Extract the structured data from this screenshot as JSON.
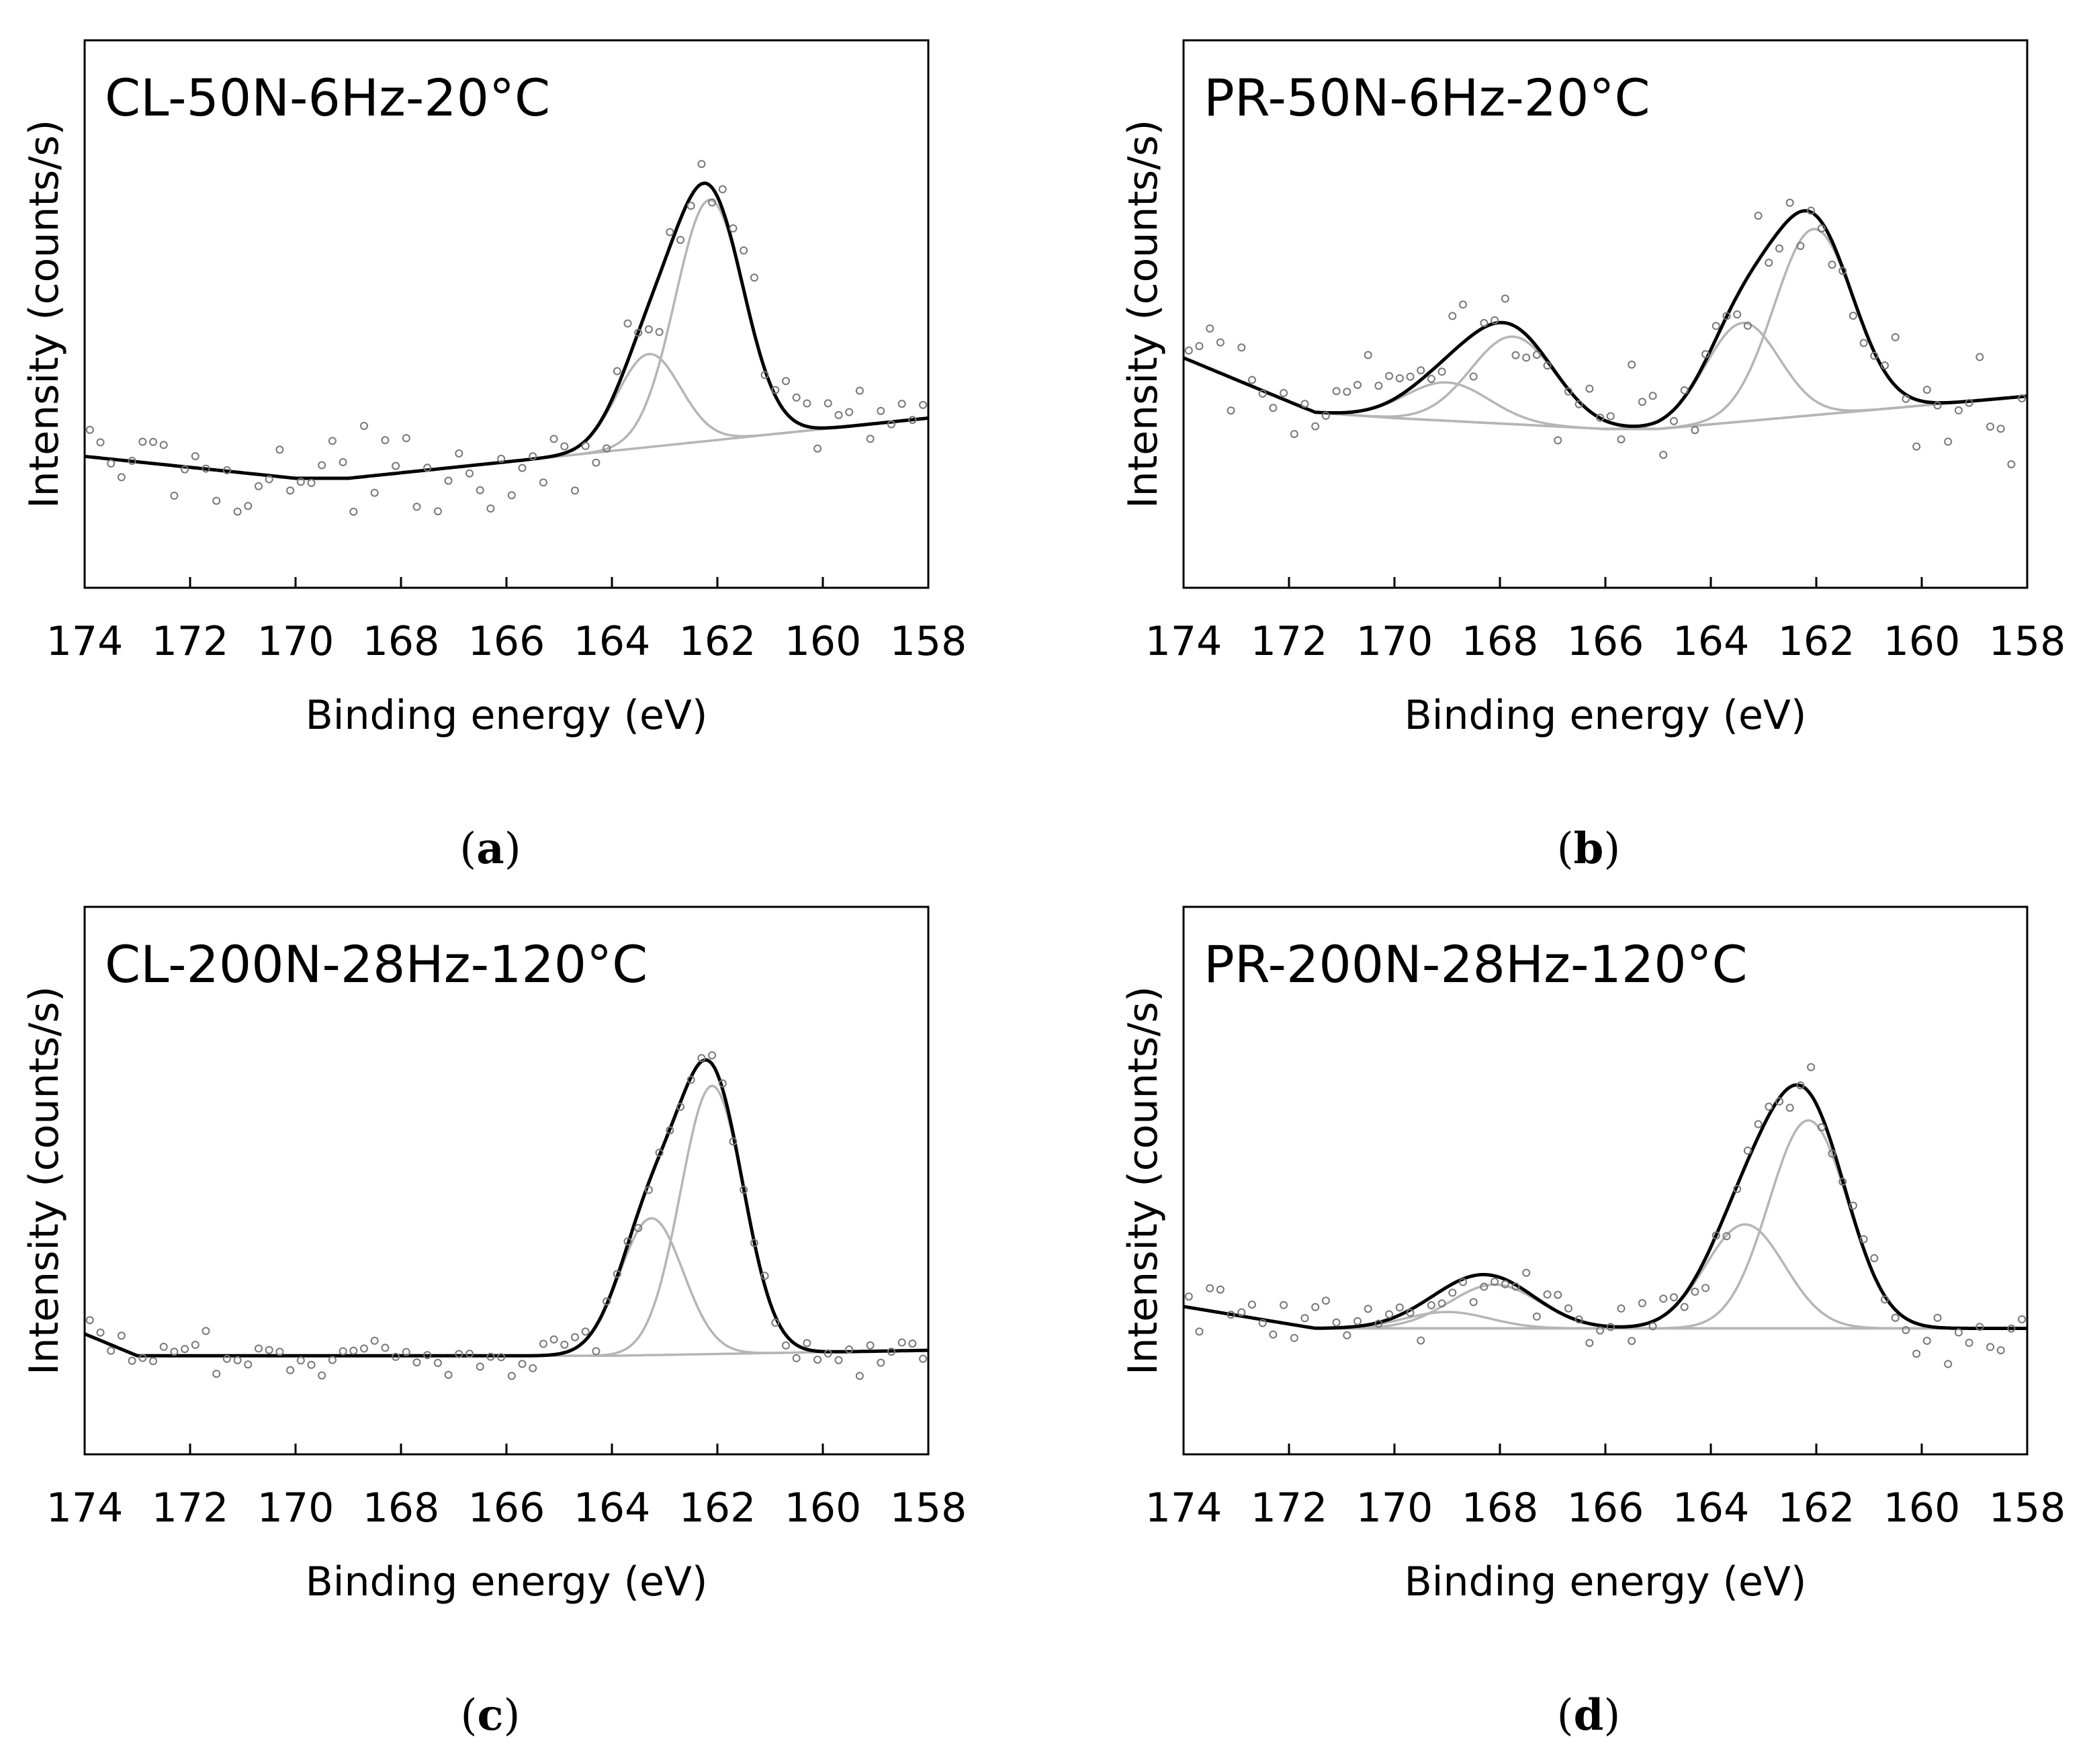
{
  "chart_data": [
    {
      "type": "line",
      "panel": "a",
      "caption": "a",
      "title": "CL-50N-6Hz-20°C",
      "xlabel": "Binding energy (eV)",
      "ylabel": "Intensity (counts/s)",
      "xlim": [
        174,
        158
      ],
      "xticks": [
        174,
        172,
        170,
        168,
        166,
        164,
        162,
        160,
        158
      ],
      "ylim": [
        0,
        100
      ],
      "baseline": {
        "x": [
          174,
          170,
          169,
          166,
          158
        ],
        "y": [
          24,
          20,
          20,
          23,
          31
        ]
      },
      "peaks": [
        {
          "center": 162.15,
          "height": 44,
          "width": 0.65
        },
        {
          "center": 163.3,
          "height": 17,
          "width": 0.6
        }
      ],
      "noise": 6,
      "grid": false,
      "legend": "none"
    },
    {
      "type": "line",
      "panel": "b",
      "caption": "b",
      "title": "PR-50N-6Hz-20°C",
      "xlabel": "Binding energy (eV)",
      "ylabel": "Intensity (counts/s)",
      "xlim": [
        174,
        158
      ],
      "xticks": [
        174,
        172,
        170,
        168,
        166,
        164,
        162,
        160,
        158
      ],
      "ylim": [
        0,
        100
      ],
      "baseline": {
        "x": [
          174,
          171.5,
          170,
          166,
          165,
          158
        ],
        "y": [
          42,
          32,
          31,
          29,
          29,
          35
        ]
      },
      "peaks": [
        {
          "center": 162.05,
          "height": 34,
          "width": 0.75
        },
        {
          "center": 163.4,
          "height": 18,
          "width": 0.7
        },
        {
          "center": 167.75,
          "height": 16,
          "width": 0.8
        },
        {
          "center": 169.0,
          "height": 7,
          "width": 0.8
        }
      ],
      "noise": 7,
      "grid": false,
      "legend": "none"
    },
    {
      "type": "line",
      "panel": "c",
      "caption": "c",
      "title": "CL-200N-28Hz-120°C",
      "xlabel": "Binding energy (eV)",
      "ylabel": "Intensity (counts/s)",
      "xlim": [
        174,
        158
      ],
      "xticks": [
        174,
        172,
        170,
        168,
        166,
        164,
        162,
        160,
        158
      ],
      "ylim": [
        0,
        100
      ],
      "baseline": {
        "x": [
          174,
          173,
          172.5,
          164,
          158
        ],
        "y": [
          22,
          18,
          18,
          18,
          19
        ]
      },
      "peaks": [
        {
          "center": 162.1,
          "height": 49,
          "width": 0.6
        },
        {
          "center": 163.25,
          "height": 25,
          "width": 0.6
        }
      ],
      "noise": 3,
      "grid": false,
      "legend": "none"
    },
    {
      "type": "line",
      "panel": "d",
      "caption": "d",
      "title": "PR-200N-28Hz-120°C",
      "xlabel": "Binding energy (eV)",
      "ylabel": "Intensity (counts/s)",
      "xlim": [
        174,
        158
      ],
      "xticks": [
        174,
        172,
        170,
        168,
        166,
        164,
        162,
        160,
        158
      ],
      "ylim": [
        0,
        100
      ],
      "baseline": {
        "x": [
          174,
          171.5,
          170,
          158
        ],
        "y": [
          27,
          23,
          23,
          23
        ]
      },
      "peaks": [
        {
          "center": 162.15,
          "height": 38,
          "width": 0.75
        },
        {
          "center": 163.35,
          "height": 19,
          "width": 0.75
        },
        {
          "center": 168.1,
          "height": 8,
          "width": 0.85
        },
        {
          "center": 169.0,
          "height": 3,
          "width": 0.8
        }
      ],
      "noise": 5,
      "grid": false,
      "legend": "none"
    }
  ]
}
